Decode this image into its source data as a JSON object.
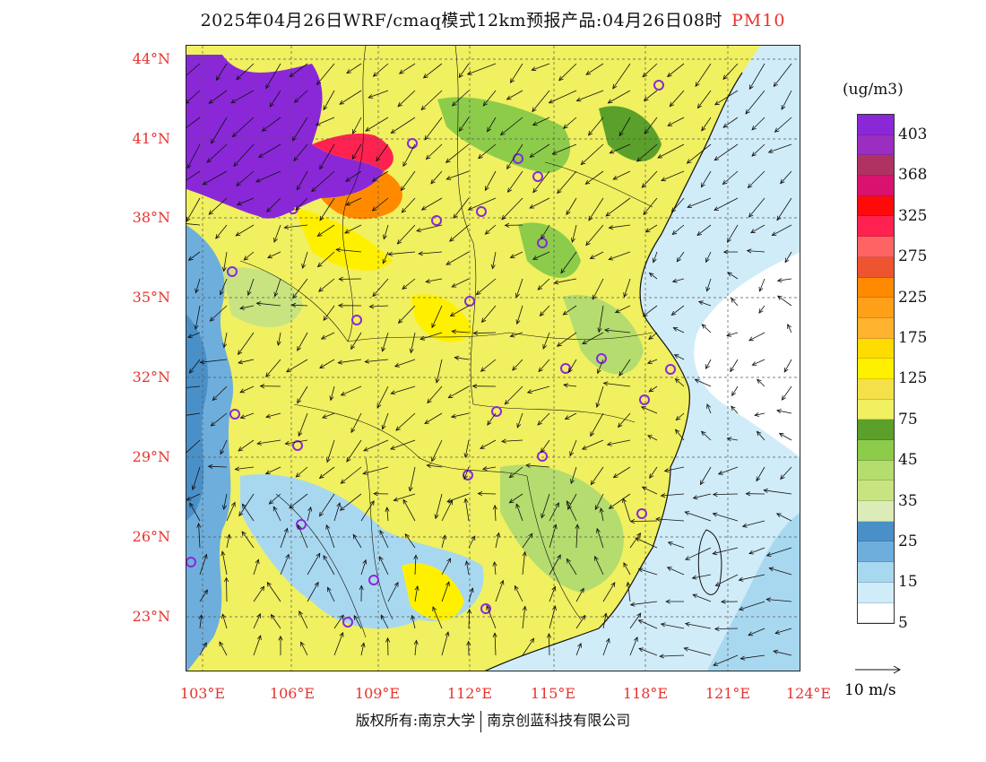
{
  "title": {
    "main": "2025年04月26日WRF/cmaq模式12km预报产品:04月26日08时",
    "pollutant": "PM10",
    "pollutant_color": "#e8322e"
  },
  "axes": {
    "lat_labels": [
      "44°N",
      "41°N",
      "38°N",
      "35°N",
      "32°N",
      "29°N",
      "26°N",
      "23°N"
    ],
    "lon_labels": [
      "103°E",
      "106°E",
      "109°E",
      "112°E",
      "115°E",
      "118°E",
      "121°E",
      "124°E"
    ],
    "label_color": "#e8322e"
  },
  "legend": {
    "unit": "(ug/m3)",
    "items": [
      {
        "label": "403",
        "color": "#8a28d8"
      },
      {
        "label": "",
        "color": "#9a2ec0"
      },
      {
        "label": "368",
        "color": "#b03262"
      },
      {
        "label": "",
        "color": "#d8126e"
      },
      {
        "label": "325",
        "color": "#ff0a0a"
      },
      {
        "label": "",
        "color": "#ff2250"
      },
      {
        "label": "275",
        "color": "#ff6464"
      },
      {
        "label": "",
        "color": "#ee5430"
      },
      {
        "label": "225",
        "color": "#ff8a00"
      },
      {
        "label": "",
        "color": "#ffa018"
      },
      {
        "label": "175",
        "color": "#ffb22e"
      },
      {
        "label": "",
        "color": "#ffdc00"
      },
      {
        "label": "125",
        "color": "#fff000"
      },
      {
        "label": "",
        "color": "#f4e048"
      },
      {
        "label": "75",
        "color": "#f0f060"
      },
      {
        "label": "",
        "color": "#5aa02a"
      },
      {
        "label": "45",
        "color": "#8ccc4a"
      },
      {
        "label": "",
        "color": "#b4dc6e"
      },
      {
        "label": "35",
        "color": "#c8e480"
      },
      {
        "label": "",
        "color": "#dcecb8"
      },
      {
        "label": "25",
        "color": "#4a90c8"
      },
      {
        "label": "",
        "color": "#6eaedc"
      },
      {
        "label": "15",
        "color": "#a8d8f0"
      },
      {
        "label": "",
        "color": "#d0ecf8"
      },
      {
        "label": "5",
        "color": "#ffffff"
      }
    ]
  },
  "wind_reference": {
    "label": "10 m/s"
  },
  "footer": {
    "left": "版权所有:南京大学",
    "right": "南京创蓝科技有限公司"
  },
  "map_colors": {
    "purple": "#8a28d8",
    "red": "#ff2250",
    "orange": "#ff8a00",
    "yellow": "#fff000",
    "lightyellow": "#f0f060",
    "green": "#8ccc4a",
    "darkgreen": "#5aa02a",
    "blue": "#4a90c8",
    "lightblue": "#a8d8f0",
    "paleblue": "#d0ecf8"
  }
}
